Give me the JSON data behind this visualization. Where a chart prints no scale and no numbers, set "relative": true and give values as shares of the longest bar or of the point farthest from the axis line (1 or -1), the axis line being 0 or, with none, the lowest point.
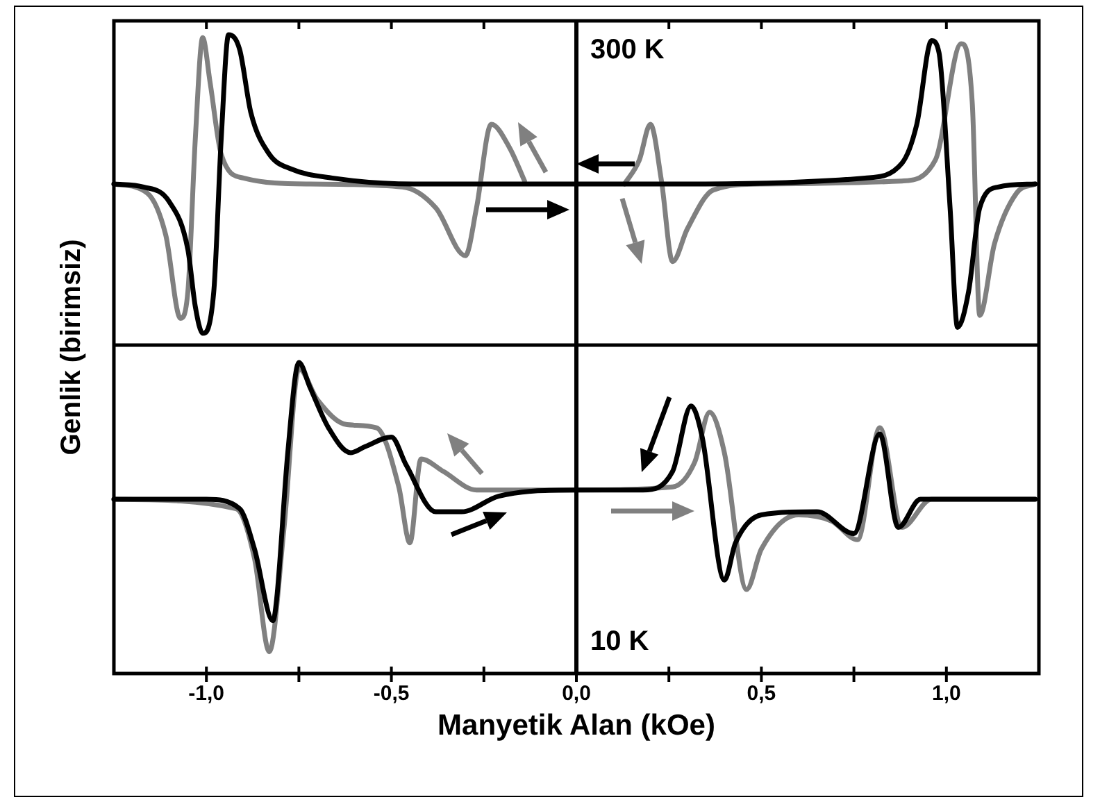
{
  "chart_data": [
    {
      "type": "line",
      "ylabel": "Genlik (birimsiz)",
      "annotations": [
        "300 K"
      ],
      "relative": true,
      "marker": "none",
      "tick_labels": false,
      "xlim": [
        -1.25,
        1.25
      ],
      "xticks": [
        {
          "value": -1.0,
          "label": null
        },
        {
          "value": -0.75,
          "label": null
        },
        {
          "value": -0.5,
          "label": null
        },
        {
          "value": -0.25,
          "label": null
        },
        {
          "value": 0,
          "label": null
        },
        {
          "value": 0.25,
          "label": null
        },
        {
          "value": 0.5,
          "label": null
        },
        {
          "value": 0.75,
          "label": null
        },
        {
          "value": 1.0,
          "label": null
        }
      ],
      "ref_lines": [
        {
          "axis": "x",
          "value": 0,
          "color": "#000000"
        }
      ],
      "series": [
        {
          "color": "#000000",
          "x": [
            -1.25,
            -1.17,
            -1.1,
            -1.05,
            -1.03,
            -1.01,
            -0.98,
            -0.96,
            -0.94,
            -0.91,
            -0.88,
            -0.83,
            -0.77,
            -0.66,
            -0.44,
            0,
            0.32,
            0.78,
            0.88,
            0.92,
            0.96,
            0.98,
            1.01,
            1.03,
            1.06,
            1.09,
            1.14,
            1.24
          ],
          "values": [
            0.5,
            0.49,
            0.44,
            0.28,
            0.09,
            0,
            0.14,
            0.65,
            1.0,
            0.95,
            0.74,
            0.6,
            0.55,
            0.52,
            0.5,
            0.5,
            0.5,
            0.52,
            0.57,
            0.7,
            0.98,
            0.94,
            0.42,
            0.02,
            0.14,
            0.42,
            0.49,
            0.5
          ]
        },
        {
          "color": "#808080",
          "x": [
            -1.25,
            -1.16,
            -1.11,
            -1.07,
            -1.05,
            -1.03,
            -1.01,
            -0.99,
            -0.96,
            -0.9,
            -0.72,
            -0.47,
            -0.38,
            -0.3,
            -0.27,
            -0.23,
            -0.18,
            -0.14,
            0,
            0.13,
            0.17,
            0.2,
            0.23,
            0.26,
            0.3,
            0.37,
            0.5,
            0.88,
            0.97,
            1.04,
            1.07,
            1.09,
            1.13,
            1.19,
            1.24
          ],
          "values": [
            0.5,
            0.47,
            0.33,
            0.05,
            0.14,
            0.65,
            0.99,
            0.84,
            0.6,
            0.52,
            0.5,
            0.49,
            0.42,
            0.26,
            0.42,
            0.7,
            0.62,
            0.51,
            null,
            0.5,
            0.58,
            0.7,
            0.51,
            0.24,
            0.35,
            0.48,
            0.5,
            0.51,
            0.58,
            0.97,
            0.77,
            0.06,
            0.3,
            0.47,
            0.5
          ]
        }
      ]
    },
    {
      "type": "line",
      "xlabel": "Manyetik Alan (kOe)",
      "annotations": [
        "10 K"
      ],
      "relative": true,
      "marker": "none",
      "xlim": [
        -1.25,
        1.25
      ],
      "xticks": [
        {
          "value": -1.0,
          "label": "-1,0"
        },
        {
          "value": -0.75,
          "label": null
        },
        {
          "value": -0.5,
          "label": "-0,5"
        },
        {
          "value": -0.25,
          "label": null
        },
        {
          "value": 0,
          "label": "0,0"
        },
        {
          "value": 0.25,
          "label": null
        },
        {
          "value": 0.5,
          "label": "0,5"
        },
        {
          "value": 0.75,
          "label": null
        },
        {
          "value": 1.0,
          "label": "1,0"
        }
      ],
      "ref_lines": [
        {
          "axis": "x",
          "value": 0,
          "color": "#000000"
        }
      ],
      "series": [
        {
          "color": "#000000",
          "x": [
            -1.25,
            -1.0,
            -0.91,
            -0.87,
            -0.82,
            -0.81,
            -0.78,
            -0.75,
            -0.72,
            -0.67,
            -0.61,
            -0.57,
            -0.5,
            -0.46,
            -0.38,
            -0.31,
            -0.21,
            0,
            0.18,
            0.26,
            0.31,
            0.34,
            0.4,
            0.43,
            0.5,
            0.65,
            0.75,
            0.82,
            0.87,
            0.93,
            1.24
          ],
          "values": [
            0.56,
            0.56,
            0.53,
            0.4,
            0.17,
            0.24,
            0.71,
            1.0,
            0.92,
            0.79,
            0.71,
            0.73,
            0.76,
            0.67,
            0.52,
            0.52,
            0.57,
            0.59,
            0.59,
            0.65,
            0.86,
            0.76,
            0.3,
            0.42,
            0.51,
            0.52,
            0.45,
            0.77,
            0.47,
            0.56,
            0.56
          ]
        },
        {
          "color": "#808080",
          "x": [
            -1.25,
            -0.92,
            -0.87,
            -0.83,
            -0.79,
            -0.75,
            -0.7,
            -0.62,
            -0.54,
            -0.48,
            -0.45,
            -0.42,
            -0.36,
            -0.27,
            0,
            0.26,
            0.32,
            0.36,
            0.4,
            0.46,
            0.5,
            0.6,
            0.69,
            0.76,
            0.82,
            0.88,
            0.96,
            1.24
          ],
          "values": [
            0.56,
            0.53,
            0.37,
            0.07,
            0.47,
            0.98,
            0.88,
            0.8,
            0.79,
            0.6,
            0.42,
            0.69,
            0.65,
            0.59,
            0.59,
            0.6,
            0.68,
            0.84,
            0.71,
            0.27,
            0.4,
            0.51,
            0.49,
            0.43,
            0.79,
            0.47,
            0.56,
            0.56
          ]
        }
      ]
    }
  ]
}
